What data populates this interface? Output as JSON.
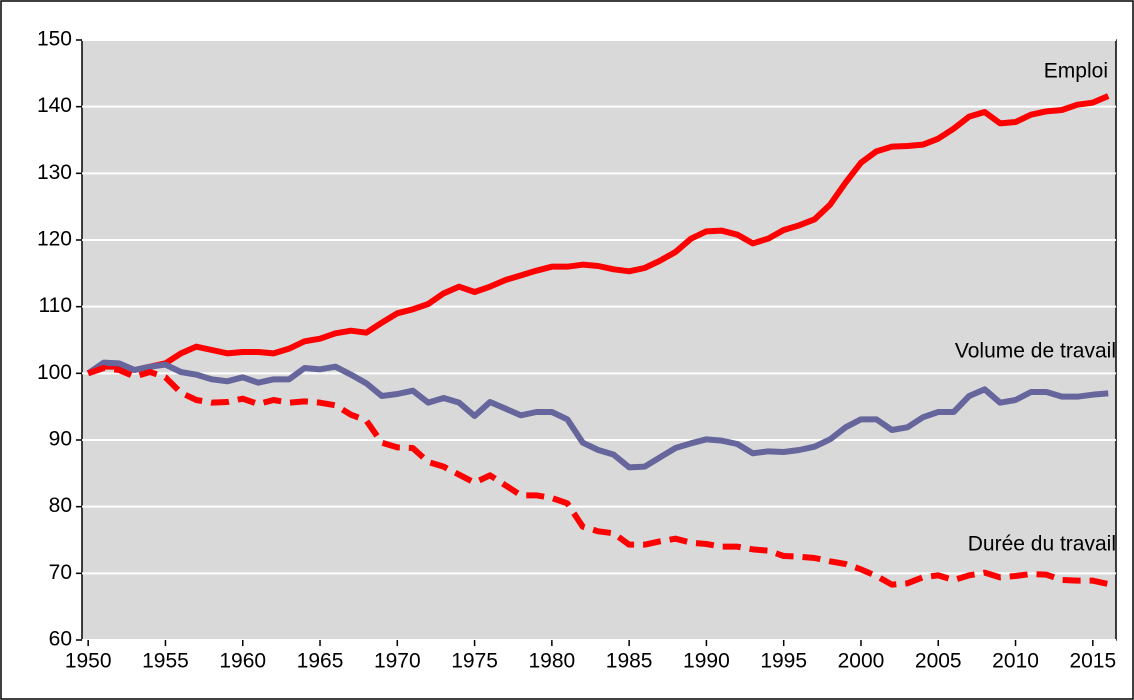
{
  "chart_data": {
    "type": "line",
    "x": [
      1950,
      1951,
      1952,
      1953,
      1954,
      1955,
      1956,
      1957,
      1958,
      1959,
      1960,
      1961,
      1962,
      1963,
      1964,
      1965,
      1966,
      1967,
      1968,
      1969,
      1970,
      1971,
      1972,
      1973,
      1974,
      1975,
      1976,
      1977,
      1978,
      1979,
      1980,
      1981,
      1982,
      1983,
      1984,
      1985,
      1986,
      1987,
      1988,
      1989,
      1990,
      1991,
      1992,
      1993,
      1994,
      1995,
      1996,
      1997,
      1998,
      1999,
      2000,
      2001,
      2002,
      2003,
      2004,
      2005,
      2006,
      2007,
      2008,
      2009,
      2010,
      2011,
      2012,
      2013,
      2014,
      2015,
      2016
    ],
    "series": [
      {
        "name": "Emploi",
        "color": "#ff0000",
        "dash": false,
        "values": [
          100,
          101,
          101,
          100.5,
          101,
          101.5,
          103,
          104,
          103.5,
          103,
          103.2,
          103.2,
          103,
          103.7,
          104.8,
          105.2,
          106,
          106.4,
          106.1,
          107.6,
          109,
          109.6,
          110.4,
          112,
          113,
          112.2,
          113,
          114,
          114.7,
          115.4,
          116,
          116,
          116.3,
          116.1,
          115.6,
          115.3,
          115.8,
          116.9,
          118.2,
          120.2,
          121.3,
          121.4,
          120.8,
          119.5,
          120.2,
          121.5,
          122.2,
          123.1,
          125.3,
          128.6,
          131.6,
          133.3,
          134,
          134.1,
          134.3,
          135.2,
          136.7,
          138.5,
          139.2,
          137.5,
          137.7,
          138.8,
          139.3,
          139.5,
          140.3,
          140.6,
          141.6
        ]
      },
      {
        "name": "Volume de travail",
        "color": "#66669c",
        "dash": false,
        "values": [
          100,
          101.6,
          101.5,
          100.5,
          101,
          101.3,
          100.2,
          99.8,
          99.1,
          98.8,
          99.4,
          98.6,
          99.1,
          99.1,
          100.8,
          100.6,
          101,
          99.8,
          98.5,
          96.6,
          96.9,
          97.4,
          95.6,
          96.3,
          95.6,
          93.6,
          95.7,
          94.7,
          93.7,
          94.2,
          94.2,
          93.1,
          89.6,
          88.5,
          87.8,
          85.9,
          86,
          87.4,
          88.8,
          89.5,
          90.1,
          89.9,
          89.4,
          88,
          88.3,
          88.2,
          88.5,
          89,
          90.1,
          91.9,
          93.1,
          93.1,
          91.5,
          91.9,
          93.4,
          94.2,
          94.2,
          96.6,
          97.6,
          95.6,
          96,
          97.2,
          97.2,
          96.5,
          96.5,
          96.8,
          97
        ]
      },
      {
        "name": "Durée du travail",
        "color": "#ff0000",
        "dash": true,
        "values": [
          100,
          100.8,
          100.5,
          99.5,
          100.2,
          99.4,
          97.1,
          96,
          95.6,
          95.7,
          96.2,
          95.4,
          96,
          95.6,
          95.8,
          95.6,
          95.2,
          93.8,
          92.9,
          89.6,
          88.9,
          88.8,
          86.7,
          86,
          84.8,
          83.6,
          84.7,
          83.2,
          81.7,
          81.7,
          81.3,
          80.5,
          77,
          76.3,
          76,
          74.3,
          74.3,
          74.8,
          75.2,
          74.6,
          74.4,
          74,
          74,
          73.6,
          73.4,
          72.6,
          72.5,
          72.3,
          71.8,
          71.4,
          70.6,
          69.6,
          68.3,
          68.5,
          69.4,
          69.7,
          69,
          69.7,
          70.1,
          69.4,
          69.6,
          69.9,
          69.8,
          69,
          68.9,
          68.9,
          68.4
        ]
      }
    ],
    "xlim": [
      1949.6,
      2016.5
    ],
    "xticks": [
      1950,
      1955,
      1960,
      1965,
      1970,
      1975,
      1980,
      1985,
      1990,
      1995,
      2000,
      2005,
      2010,
      2015
    ],
    "ylim": [
      60,
      150
    ],
    "yticks": [
      60,
      70,
      80,
      90,
      100,
      110,
      120,
      130,
      140,
      150
    ],
    "grid": true
  }
}
